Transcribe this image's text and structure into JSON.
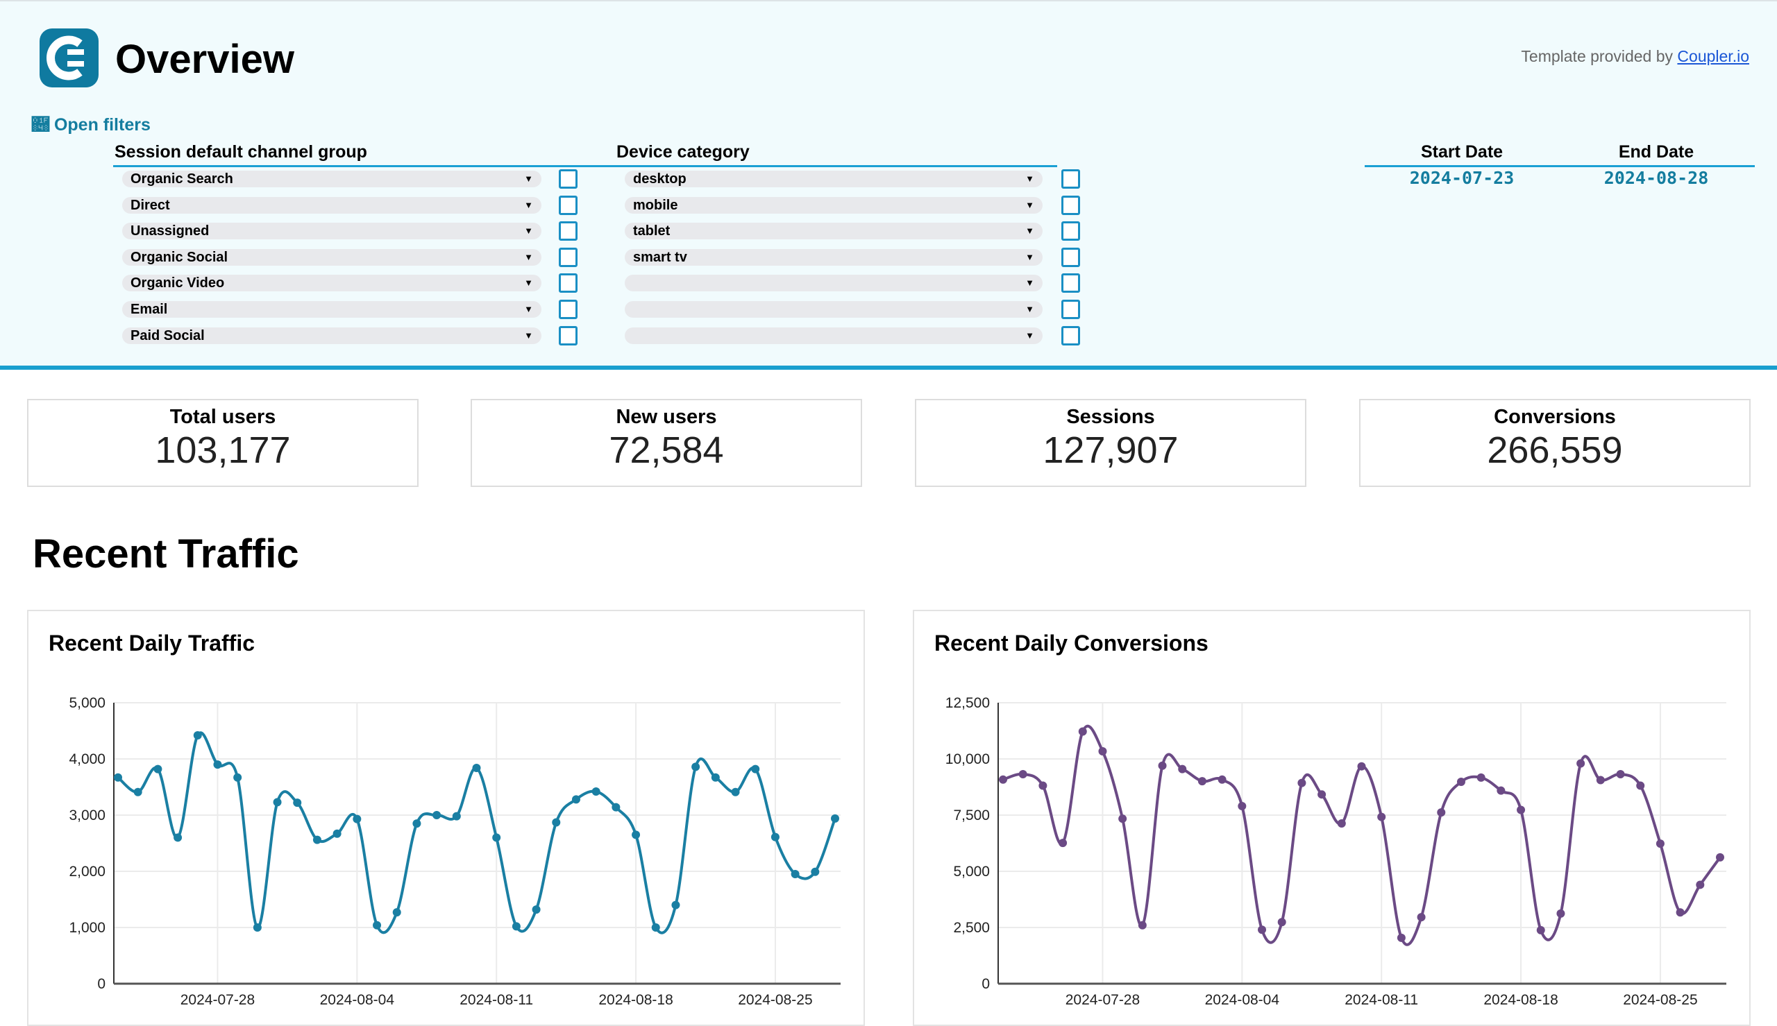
{
  "header": {
    "title": "Overview",
    "credit_prefix": "Template provided by ",
    "credit_link": "Coupler.io",
    "open_filters": "Open filters",
    "logo_color": "#0f7aa0"
  },
  "filters": {
    "channel_group": {
      "label": "Session default channel group",
      "options": [
        "Organic Search",
        "Direct",
        "Unassigned",
        "Organic Social",
        "Organic Video",
        "Email",
        "Paid Social"
      ]
    },
    "device_category": {
      "label": "Device category",
      "options": [
        "desktop",
        "mobile",
        "tablet",
        "smart tv",
        "",
        "",
        ""
      ]
    },
    "start_date_label": "Start Date",
    "end_date_label": "End Date",
    "start_date": "2024-07-23",
    "end_date": "2024-08-28"
  },
  "kpis": [
    {
      "label": "Total users",
      "value": "103,177"
    },
    {
      "label": "New users",
      "value": "72,584"
    },
    {
      "label": "Sessions",
      "value": "127,907"
    },
    {
      "label": "Conversions",
      "value": "266,559"
    }
  ],
  "section_title": "Recent Traffic",
  "chart_data": [
    {
      "type": "line",
      "title": "Recent Daily Traffic",
      "color": "#1a7fa3",
      "x_start": "2024-07-23",
      "x_end": "2024-08-28",
      "x_ticks": [
        "2024-07-28",
        "2024-08-04",
        "2024-08-11",
        "2024-08-18",
        "2024-08-25"
      ],
      "ylim": [
        0,
        5000
      ],
      "y_ticks": [
        "0",
        "1,000",
        "2,000",
        "3,000",
        "4,000",
        "5,000"
      ],
      "y_tick_values": [
        0,
        1000,
        2000,
        3000,
        4000,
        5000
      ],
      "grid": true,
      "values": [
        3670,
        3410,
        3820,
        2600,
        4420,
        3900,
        3670,
        1000,
        3230,
        3220,
        2560,
        2670,
        2930,
        1040,
        1270,
        2850,
        3000,
        2980,
        3840,
        2600,
        1020,
        1320,
        2870,
        3280,
        3420,
        3140,
        2650,
        1000,
        1400,
        3860,
        3670,
        3410,
        3820,
        2610,
        1950,
        1990,
        2940
      ]
    },
    {
      "type": "line",
      "title": "Recent Daily Conversions",
      "color": "#6b4a85",
      "x_start": "2024-07-23",
      "x_end": "2024-08-28",
      "x_ticks": [
        "2024-07-28",
        "2024-08-04",
        "2024-08-11",
        "2024-08-18",
        "2024-08-25"
      ],
      "ylim": [
        0,
        12500
      ],
      "y_ticks": [
        "0",
        "2,500",
        "5,000",
        "7,500",
        "10,000",
        "12,500"
      ],
      "y_tick_values": [
        0,
        2500,
        5000,
        7500,
        10000,
        12500
      ],
      "grid": true,
      "values": [
        9080,
        9320,
        8810,
        6260,
        11220,
        10340,
        7340,
        2600,
        9700,
        9550,
        9010,
        9080,
        7900,
        2400,
        2740,
        8930,
        8420,
        7130,
        9670,
        7420,
        2040,
        2960,
        7620,
        8980,
        9170,
        8590,
        7730,
        2380,
        3120,
        9800,
        9060,
        9320,
        8810,
        6230,
        3170,
        4400,
        5620
      ]
    }
  ]
}
